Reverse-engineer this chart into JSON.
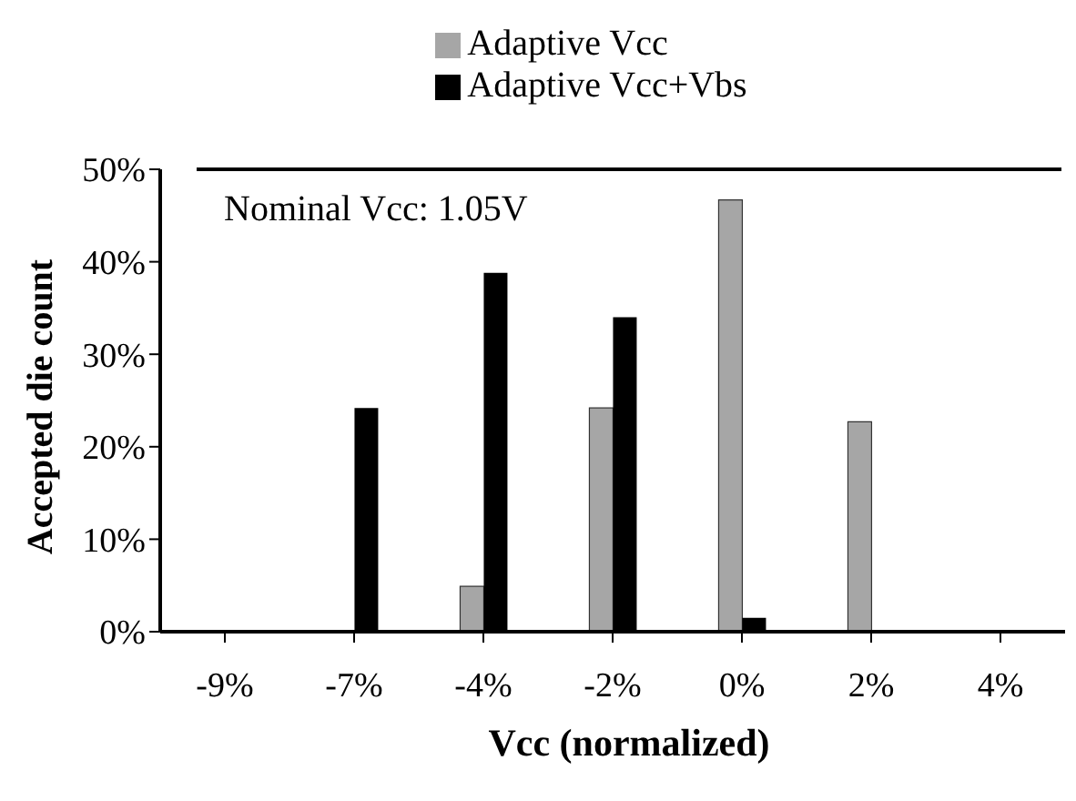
{
  "chart_data": {
    "type": "bar",
    "xlabel": "Vcc (normalized)",
    "ylabel": "Accepted die count",
    "categories": [
      "-9%",
      "-7%",
      "-4%",
      "-2%",
      "0%",
      "2%",
      "4%"
    ],
    "series": [
      {
        "name": "Adaptive Vcc",
        "color": "#a6a6a6",
        "values": [
          0,
          0,
          4.9,
          24.2,
          46.7,
          22.7,
          0
        ]
      },
      {
        "name": "Adaptive Vcc+Vbs",
        "color": "#000000",
        "values": [
          0,
          24.2,
          38.8,
          34.0,
          1.5,
          0,
          0
        ]
      }
    ],
    "ylim": [
      0,
      50
    ],
    "yticks": [
      {
        "value": 0,
        "label": "0%"
      },
      {
        "value": 10,
        "label": "10%"
      },
      {
        "value": 20,
        "label": "20%"
      },
      {
        "value": 30,
        "label": "30%"
      },
      {
        "value": 40,
        "label": "40%"
      },
      {
        "value": 50,
        "label": "50%"
      }
    ],
    "annotations": [
      "Nominal Vcc: 1.05V"
    ],
    "legend": "top",
    "grid": false
  }
}
